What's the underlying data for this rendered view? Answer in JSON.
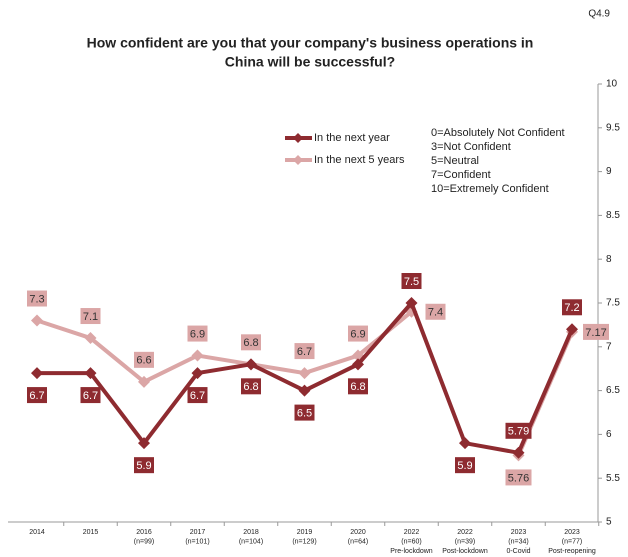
{
  "header": {
    "code": "Q4.9"
  },
  "chart_data": {
    "type": "line",
    "title": [
      "How confident are you that your company's business operations in",
      "China will be successful?"
    ],
    "categories": [
      [
        "2014"
      ],
      [
        "2015"
      ],
      [
        "2016",
        "(n=99)"
      ],
      [
        "2017",
        "(n=101)"
      ],
      [
        "2018",
        "(n=104)"
      ],
      [
        "2019",
        "(n=129)"
      ],
      [
        "2020",
        "(n=64)"
      ],
      [
        "2022",
        "(n=60)",
        "Pre-lockdown"
      ],
      [
        "2022",
        "(n=39)",
        "Post-lockdown"
      ],
      [
        "2023",
        "(n=34)",
        "0-Covid"
      ],
      [
        "2023",
        "(n=77)",
        "Post-reopening"
      ]
    ],
    "series": [
      {
        "name": "In the next year",
        "color": "#8e2b30",
        "values": [
          6.7,
          6.7,
          5.9,
          6.7,
          6.8,
          6.5,
          6.8,
          7.5,
          5.9,
          5.79,
          7.2
        ]
      },
      {
        "name": "In the next 5 years",
        "color": "#dba6a6",
        "values": [
          7.3,
          7.1,
          6.6,
          6.9,
          6.8,
          6.7,
          6.9,
          7.4,
          null,
          5.76,
          7.17
        ]
      }
    ],
    "annotations": [
      "0=Absolutely Not Confident",
      "3=Not Confident",
      "5=Neutral",
      "7=Confident",
      "10=Extremely Confident"
    ],
    "ylim": [
      5,
      10
    ],
    "yticks": [
      5,
      5.5,
      6,
      6.5,
      7,
      7.5,
      8,
      8.5,
      9,
      9.5,
      10
    ],
    "y_axis_side": "right"
  }
}
